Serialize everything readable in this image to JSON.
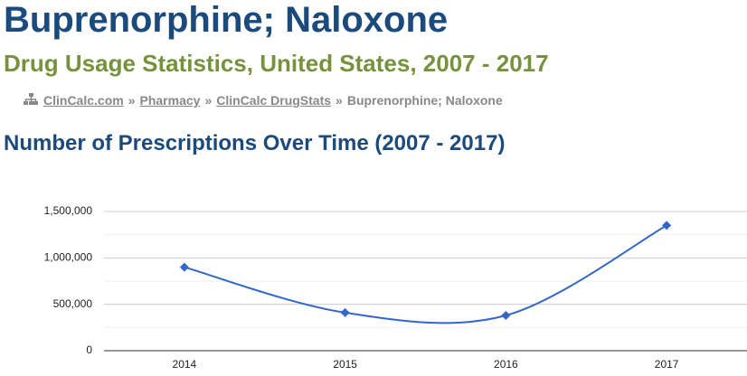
{
  "header": {
    "title": "Buprenorphine; Naloxone",
    "subtitle": "Drug Usage Statistics, United States, 2007 - 2017"
  },
  "breadcrumb": {
    "links": [
      "ClinCalc.com",
      "Pharmacy",
      "ClinCalc DrugStats"
    ],
    "current": "Buprenorphine; Naloxone",
    "separator": "»"
  },
  "section": {
    "title": "Number of Prescriptions Over Time (2007 - 2017)"
  },
  "chart_data": {
    "type": "line",
    "categories": [
      "2014",
      "2015",
      "2016",
      "2017"
    ],
    "values": [
      900000,
      410000,
      380000,
      1350000
    ],
    "color": "#3366cc",
    "smooth": true,
    "ylim": [
      0,
      1500000
    ],
    "yticks": [
      0,
      {
        "value": 500000,
        "label": "500,000"
      },
      {
        "value": 1000000,
        "label": "1,000,000"
      },
      {
        "value": 1500000,
        "label": "1,500,000"
      }
    ],
    "minor_yticks": [
      250000,
      750000,
      1250000
    ],
    "grid": true
  }
}
